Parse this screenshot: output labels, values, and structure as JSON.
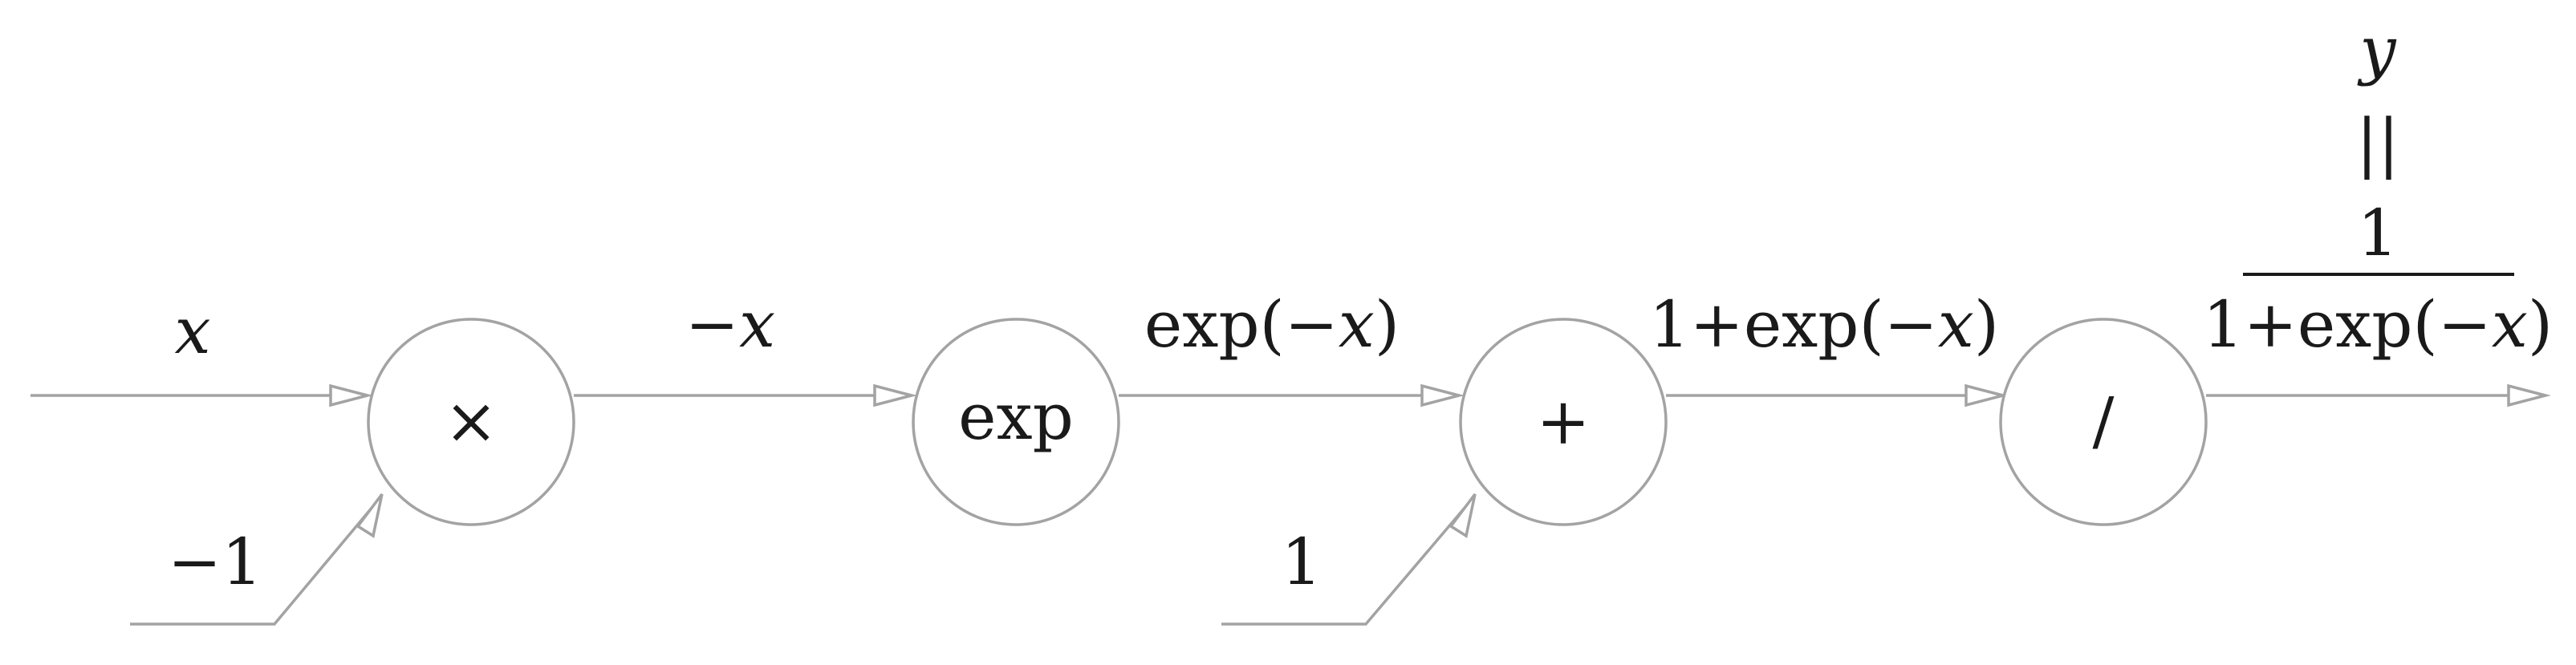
{
  "diagram": {
    "nodes": [
      {
        "id": "multiply",
        "label": "×"
      },
      {
        "id": "exp",
        "label": "exp"
      },
      {
        "id": "add",
        "label": "+"
      },
      {
        "id": "divide",
        "label": "/"
      }
    ],
    "inputs": {
      "x": "x",
      "minus_one": "−1",
      "one": "1"
    },
    "edges": {
      "neg_x": {
        "prefix": "−",
        "var": "x"
      },
      "exp_neg_x": {
        "prefix": "exp(−",
        "var": "x",
        "suffix": ")"
      },
      "one_plus_exp": {
        "prefix": "1+exp(−",
        "var": "x",
        "suffix": ")"
      }
    },
    "output": {
      "y": "y",
      "equals": "||",
      "numerator": "1",
      "denominator": {
        "prefix": "1+exp(−",
        "var": "x",
        "suffix": ")"
      }
    }
  }
}
